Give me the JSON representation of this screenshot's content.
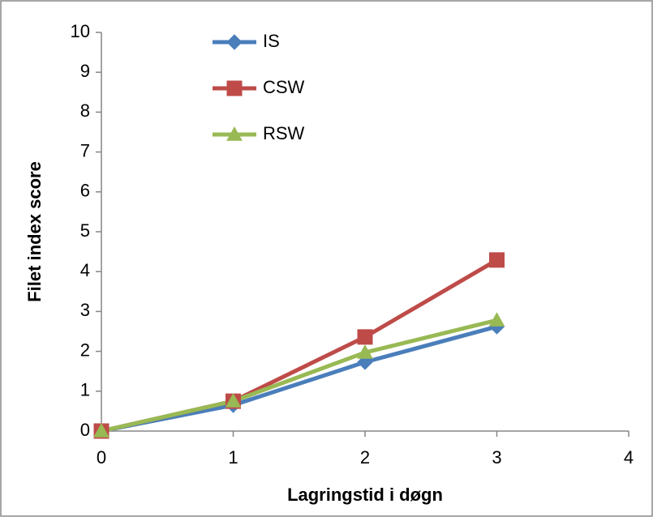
{
  "chart_data": {
    "type": "line",
    "x_label": "Lagringstid i døgn",
    "y_label": "Filet index score",
    "x": [
      0,
      1,
      2,
      3
    ],
    "series": [
      {
        "name": "IS",
        "color": "#4a7ebb",
        "marker": "diamond",
        "values": [
          0,
          0.65,
          1.73,
          2.62
        ]
      },
      {
        "name": "CSW",
        "color": "#be4b48",
        "marker": "square",
        "values": [
          0,
          0.75,
          2.36,
          4.29
        ]
      },
      {
        "name": "RSW",
        "color": "#98b954",
        "marker": "triangle",
        "values": [
          0,
          0.75,
          1.97,
          2.78
        ]
      }
    ],
    "xlim": [
      0,
      4
    ],
    "xticks": [
      0,
      1,
      2,
      3,
      4
    ],
    "ylim": [
      0,
      10
    ],
    "yticks": [
      0,
      1,
      2,
      3,
      4,
      5,
      6,
      7,
      8,
      9,
      10
    ],
    "grid": false,
    "legend": "upper left"
  }
}
